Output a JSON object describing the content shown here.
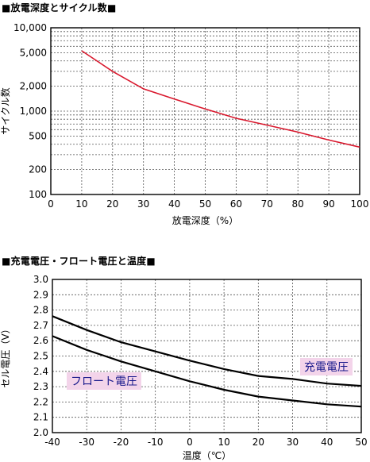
{
  "chart_data": [
    {
      "type": "line",
      "title": "■放電深度とサイクル数■",
      "xlabel": "放電深度（%）",
      "ylabel": "サイクル数",
      "xlim": [
        0,
        100
      ],
      "ylim": [
        100,
        10000
      ],
      "yscale": "log",
      "x_ticks": [
        0,
        10,
        20,
        30,
        40,
        50,
        60,
        70,
        80,
        90,
        100
      ],
      "y_ticks": [
        {
          "value": 100,
          "label": "100"
        },
        {
          "value": 200,
          "label": "200"
        },
        {
          "value": 500,
          "label": "500"
        },
        {
          "value": 1000,
          "label": "1,000"
        },
        {
          "value": 2000,
          "label": "2,000"
        },
        {
          "value": 5000,
          "label": "5,000"
        },
        {
          "value": 10000,
          "label": "10,000"
        }
      ],
      "y_minor_gridlines": [
        300,
        400,
        600,
        700,
        800,
        900,
        3000,
        4000,
        6000,
        7000,
        8000,
        9000
      ],
      "grid": true,
      "series": [
        {
          "color": "#d9182d",
          "points": [
            [
              10,
              5300
            ],
            [
              20,
              3000
            ],
            [
              30,
              1850
            ],
            [
              40,
              1400
            ],
            [
              50,
              1060
            ],
            [
              60,
              820
            ],
            [
              70,
              680
            ],
            [
              80,
              560
            ],
            [
              90,
              450
            ],
            [
              100,
              370
            ]
          ]
        }
      ]
    },
    {
      "type": "line",
      "title": "■充電電圧・フロート電圧と温度■",
      "xlabel": "温度（℃）",
      "ylabel": "セル電圧（V）",
      "xlim": [
        -40,
        50
      ],
      "ylim": [
        2.0,
        3.0
      ],
      "x_ticks": [
        -40,
        -30,
        -20,
        -10,
        0,
        10,
        20,
        30,
        40,
        50
      ],
      "y_ticks": [
        {
          "value": 2.0,
          "label": "2.0"
        },
        {
          "value": 2.1,
          "label": "2.1"
        },
        {
          "value": 2.2,
          "label": "2.2"
        },
        {
          "value": 2.3,
          "label": "2.3"
        },
        {
          "value": 2.4,
          "label": "2.4"
        },
        {
          "value": 2.5,
          "label": "2.5"
        },
        {
          "value": 2.6,
          "label": "2.6"
        },
        {
          "value": 2.7,
          "label": "2.7"
        },
        {
          "value": 2.8,
          "label": "2.8"
        },
        {
          "value": 2.9,
          "label": "2.9"
        },
        {
          "value": 3.0,
          "label": "3.0"
        }
      ],
      "grid": true,
      "series": [
        {
          "name": "充電電圧",
          "color": "#000000",
          "points": [
            [
              -40,
              2.76
            ],
            [
              -30,
              2.67
            ],
            [
              -20,
              2.59
            ],
            [
              -10,
              2.53
            ],
            [
              0,
              2.47
            ],
            [
              10,
              2.415
            ],
            [
              20,
              2.37
            ],
            [
              30,
              2.35
            ],
            [
              40,
              2.32
            ],
            [
              50,
              2.305
            ]
          ]
        },
        {
          "name": "フロート電圧",
          "color": "#000000",
          "points": [
            [
              -40,
              2.63
            ],
            [
              -30,
              2.54
            ],
            [
              -20,
              2.465
            ],
            [
              -10,
              2.4
            ],
            [
              0,
              2.335
            ],
            [
              10,
              2.28
            ],
            [
              20,
              2.235
            ],
            [
              30,
              2.21
            ],
            [
              40,
              2.185
            ],
            [
              50,
              2.17
            ]
          ]
        }
      ],
      "series_label_bg": "#f3d4ea"
    }
  ]
}
